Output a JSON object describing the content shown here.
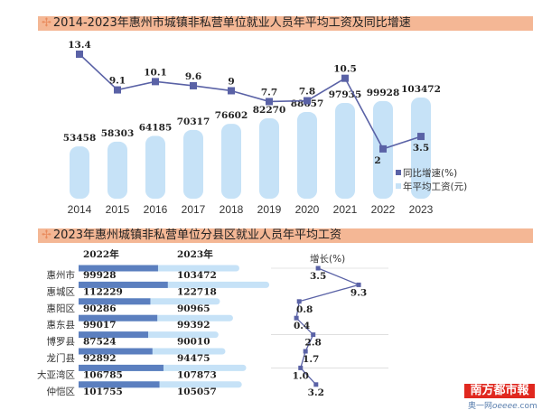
{
  "colors": {
    "bar": "#c6e2f7",
    "line": "#5a62a6",
    "dark_bar": "#5b7fbf",
    "title_bg": "#f4b795"
  },
  "chart_data": [
    {
      "type": "bar+line",
      "title": "2014-2023年惠州市城镇非私营单位就业人员年平均工资及同比增速",
      "categories": [
        "2014",
        "2015",
        "2016",
        "2017",
        "2018",
        "2019",
        "2020",
        "2021",
        "2022",
        "2023"
      ],
      "series": [
        {
          "name": "年平均工资(元)",
          "type": "bar",
          "values": [
            53458,
            58303,
            64185,
            70317,
            76602,
            82270,
            88657,
            97935,
            99928,
            103472
          ]
        },
        {
          "name": "同比增速(%)",
          "type": "line",
          "values": [
            13.4,
            9.1,
            10.1,
            9.6,
            9,
            7.7,
            7.8,
            10.5,
            2,
            3.5
          ],
          "labels": [
            "13.4",
            "9.1",
            "10.1",
            "9.6",
            "9",
            "7.7",
            "7.8",
            "10.5",
            "2",
            "3.5"
          ]
        }
      ],
      "legend": "right"
    },
    {
      "type": "bar+line",
      "title": "2023年惠州城镇非私营单位分县区就业人员年平均工资",
      "col_2022": "2022年",
      "col_2023": "2023年",
      "growth_label": "增长(%)",
      "categories": [
        "惠州市",
        "惠城区",
        "惠阳区",
        "惠东县",
        "博罗县",
        "龙门县",
        "大亚湾区",
        "仲恺区"
      ],
      "series": [
        {
          "name": "2022年",
          "values": [
            99928,
            112229,
            90286,
            99017,
            87524,
            92892,
            106785,
            101755
          ]
        },
        {
          "name": "2023年",
          "values": [
            103472,
            122718,
            90965,
            99392,
            90010,
            94475,
            107873,
            105057
          ]
        },
        {
          "name": "增长(%)",
          "values": [
            3.5,
            9.3,
            0.8,
            0.4,
            2.8,
            1.7,
            1.0,
            3.2
          ],
          "labels": [
            "3.5",
            "9.3",
            "0.8",
            "0.4",
            "2.8",
            "1.7",
            "1.0",
            "3.2"
          ]
        }
      ]
    }
  ],
  "logo": {
    "name": "南方都市報",
    "site": "奥一网oeeee.com"
  }
}
